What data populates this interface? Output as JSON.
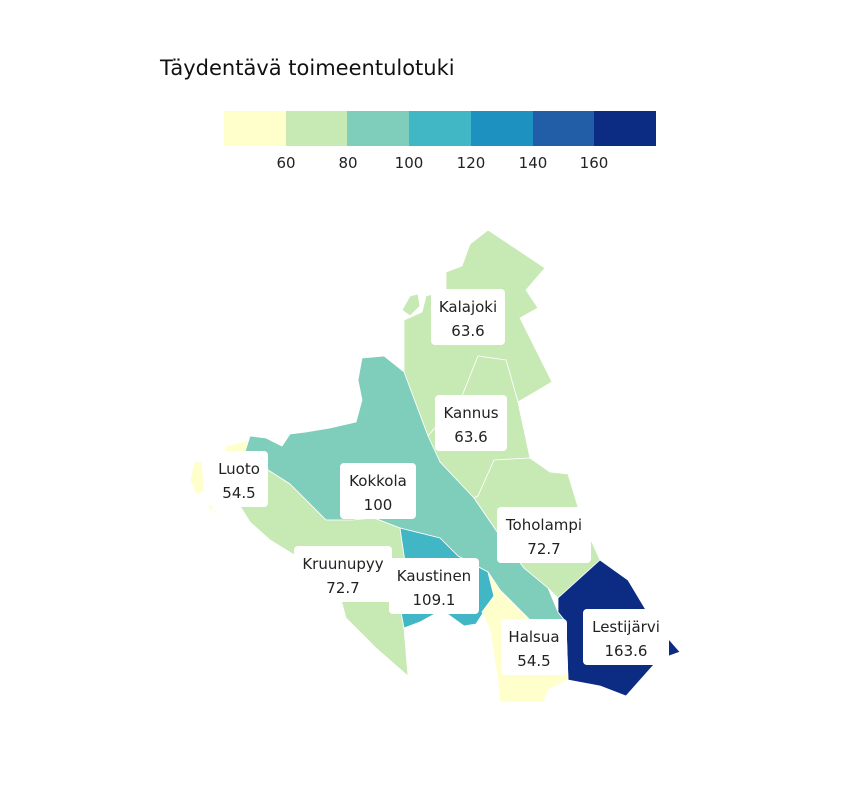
{
  "title": "Täydentävä toimeentulotuki",
  "legend": {
    "colors": [
      "#ffffcc",
      "#c7e9b4",
      "#7fcdbb",
      "#41b6c4",
      "#1d91c0",
      "#225ea8",
      "#0c2c84"
    ],
    "ticks": [
      "60",
      "80",
      "100",
      "120",
      "140",
      "160"
    ]
  },
  "regions": [
    {
      "name": "Kalajoki",
      "value": "63.6",
      "color": "#c7e9b4"
    },
    {
      "name": "Kannus",
      "value": "63.6",
      "color": "#c7e9b4"
    },
    {
      "name": "Luoto",
      "value": "54.5",
      "color": "#ffffcc"
    },
    {
      "name": "Kokkola",
      "value": "100",
      "color": "#7fcdbb"
    },
    {
      "name": "Toholampi",
      "value": "72.7",
      "color": "#c7e9b4"
    },
    {
      "name": "Kruunupyy",
      "value": "72.7",
      "color": "#c7e9b4"
    },
    {
      "name": "Kaustinen",
      "value": "109.1",
      "color": "#41b6c4"
    },
    {
      "name": "Lestijärvi",
      "value": "163.6",
      "color": "#0c2c84"
    },
    {
      "name": "Halsua",
      "value": "54.5",
      "color": "#ffffcc"
    }
  ]
}
